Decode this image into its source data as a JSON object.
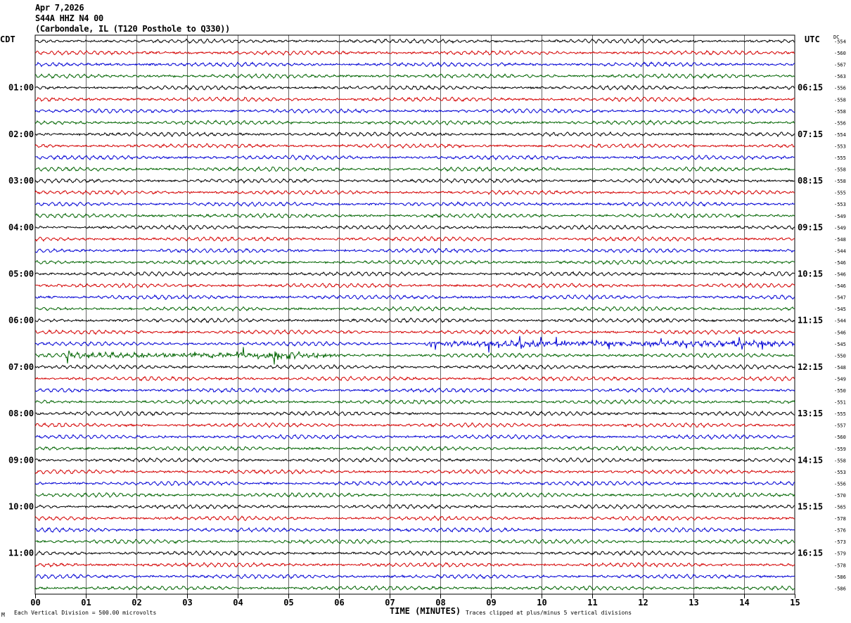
{
  "header": {
    "date": "Apr 7,2026",
    "station": "S44A HHZ N4 00",
    "location": "(Carbondale, IL (T120 Posthole to Q330))"
  },
  "axes": {
    "left_label": "CDT",
    "right_label": "UTC",
    "dc_label": "DC",
    "x_title": "TIME (MINUTES)"
  },
  "footer": {
    "left_mark": "M",
    "scale_note": "Each Vertical Division =  500.00 microvolts",
    "clip_note": "Traces clipped at plus/minus 5 vertical divisions"
  },
  "chart_data": {
    "type": "line",
    "title": "S44A HHZ N4 00",
    "xlabel": "TIME (MINUTES)",
    "xlim": [
      0,
      15
    ],
    "x_ticks": [
      "00",
      "01",
      "02",
      "03",
      "04",
      "05",
      "06",
      "07",
      "08",
      "09",
      "10",
      "11",
      "12",
      "13",
      "14",
      "15"
    ],
    "rows_per_hour": 4,
    "row_colors": [
      "#000000",
      "#d40000",
      "#0000d4",
      "#006400"
    ],
    "left_hour_labels": [
      "01:00",
      "02:00",
      "03:00",
      "04:00",
      "05:00",
      "06:00",
      "07:00",
      "08:00",
      "09:00",
      "10:00",
      "11:00"
    ],
    "right_hour_labels": [
      "06:15",
      "07:15",
      "08:15",
      "09:15",
      "10:15",
      "11:15",
      "12:15",
      "13:15",
      "14:15",
      "15:15",
      "16:15"
    ],
    "dc_offsets": [
      -554,
      -560,
      -567,
      -563,
      -556,
      -558,
      -558,
      -556,
      -554,
      -553,
      -555,
      -558,
      -558,
      -555,
      -553,
      -549,
      -549,
      -548,
      -544,
      -546,
      -546,
      -546,
      -547,
      -545,
      -544,
      -546,
      -545,
      -550,
      -548,
      -549,
      -550,
      -551,
      -555,
      -557,
      -560,
      -559,
      -558,
      -553,
      -556,
      -570,
      -565,
      -578,
      -576,
      -573,
      -579,
      -578,
      -586,
      -586
    ],
    "events": [
      {
        "row": 27,
        "x_start": 0.6,
        "x_end": 6.0,
        "strength": "moderate"
      },
      {
        "row": 26,
        "x_start": 7.7,
        "x_end": 15.0,
        "strength": "moderate"
      }
    ],
    "scale": "Each Vertical Division =  500.00 microvolts",
    "clip": "Traces clipped at plus/minus 5 vertical divisions"
  }
}
